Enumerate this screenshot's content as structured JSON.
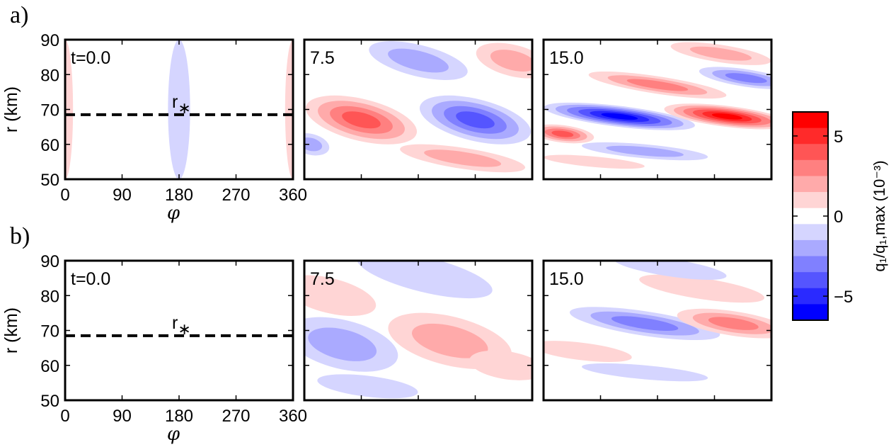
{
  "chart_data": {
    "type": "heatmap",
    "rows": [
      {
        "label": "a)",
        "panels": [
          {
            "time_label": "t=0.0",
            "t": 0.0,
            "rstar_label": "r*",
            "cells": [
              {
                "phi": 0,
                "r": 70,
                "value": 1,
                "phi_width": 25,
                "r_height": 40,
                "tilt": 0
              },
              {
                "phi": 360,
                "r": 70,
                "value": 1,
                "phi_width": 25,
                "r_height": 40,
                "tilt": 0
              },
              {
                "phi": 180,
                "r": 70,
                "value": -1,
                "phi_width": 35,
                "r_height": 40,
                "tilt": 0
              }
            ]
          },
          {
            "time_label": "7.5",
            "t": 7.5,
            "cells": [
              {
                "phi": 90,
                "r": 67,
                "value": 4,
                "phi_width": 180,
                "r_height": 12,
                "tilt": -0.08
              },
              {
                "phi": 270,
                "r": 67,
                "value": -4,
                "phi_width": 180,
                "r_height": 12,
                "tilt": -0.08
              },
              {
                "phi": 180,
                "r": 84,
                "value": -2,
                "phi_width": 160,
                "r_height": 9,
                "tilt": -0.08
              },
              {
                "phi": 330,
                "r": 84,
                "value": 2,
                "phi_width": 120,
                "r_height": 9,
                "tilt": -0.08
              },
              {
                "phi": 10,
                "r": 60,
                "value": -2,
                "phi_width": 60,
                "r_height": 6,
                "tilt": -0.08
              },
              {
                "phi": 250,
                "r": 56,
                "value": 2,
                "phi_width": 200,
                "r_height": 6,
                "tilt": -0.05
              }
            ]
          },
          {
            "time_label": "15.0",
            "t": 15.0,
            "cells": [
              {
                "phi": 120,
                "r": 68,
                "value": -6,
                "phi_width": 240,
                "r_height": 6,
                "tilt": -0.04
              },
              {
                "phi": 290,
                "r": 68,
                "value": 6,
                "phi_width": 200,
                "r_height": 6,
                "tilt": -0.04
              },
              {
                "phi": 180,
                "r": 77,
                "value": 3,
                "phi_width": 220,
                "r_height": 5,
                "tilt": -0.05
              },
              {
                "phi": 320,
                "r": 79,
                "value": -3,
                "phi_width": 150,
                "r_height": 5,
                "tilt": -0.05
              },
              {
                "phi": 280,
                "r": 86,
                "value": 2,
                "phi_width": 160,
                "r_height": 5,
                "tilt": -0.05
              },
              {
                "phi": 30,
                "r": 63,
                "value": 4,
                "phi_width": 100,
                "r_height": 5,
                "tilt": -0.04
              },
              {
                "phi": 160,
                "r": 58,
                "value": -2,
                "phi_width": 200,
                "r_height": 4,
                "tilt": -0.03
              },
              {
                "phi": 80,
                "r": 55,
                "value": 1,
                "phi_width": 160,
                "r_height": 3,
                "tilt": -0.03
              }
            ]
          }
        ]
      },
      {
        "label": "b)",
        "panels": [
          {
            "time_label": "t=0.0",
            "t": 0.0,
            "rstar_label": "r*",
            "cells": []
          },
          {
            "time_label": "7.5",
            "t": 7.5,
            "cells": [
              {
                "phi": 60,
                "r": 66,
                "value": -2,
                "phi_width": 180,
                "r_height": 14,
                "tilt": -0.08
              },
              {
                "phi": 230,
                "r": 67,
                "value": 2,
                "phi_width": 200,
                "r_height": 14,
                "tilt": -0.08
              },
              {
                "phi": 190,
                "r": 86,
                "value": -1,
                "phi_width": 220,
                "r_height": 10,
                "tilt": -0.08
              },
              {
                "phi": 40,
                "r": 80,
                "value": 1,
                "phi_width": 150,
                "r_height": 10,
                "tilt": -0.08
              },
              {
                "phi": 320,
                "r": 60,
                "value": 1,
                "phi_width": 120,
                "r_height": 8,
                "tilt": -0.05
              },
              {
                "phi": 100,
                "r": 54,
                "value": -1,
                "phi_width": 160,
                "r_height": 6,
                "tilt": -0.04
              }
            ]
          },
          {
            "time_label": "15.0",
            "t": 15.0,
            "cells": [
              {
                "phi": 160,
                "r": 72,
                "value": -3,
                "phi_width": 240,
                "r_height": 7,
                "tilt": -0.05
              },
              {
                "phi": 300,
                "r": 72,
                "value": 3,
                "phi_width": 180,
                "r_height": 7,
                "tilt": -0.05
              },
              {
                "phi": 250,
                "r": 82,
                "value": 1,
                "phi_width": 200,
                "r_height": 6,
                "tilt": -0.05
              },
              {
                "phi": 200,
                "r": 88,
                "value": -1,
                "phi_width": 180,
                "r_height": 5,
                "tilt": -0.05
              },
              {
                "phi": 60,
                "r": 64,
                "value": 1,
                "phi_width": 160,
                "r_height": 5,
                "tilt": -0.04
              },
              {
                "phi": 160,
                "r": 58,
                "value": -1,
                "phi_width": 200,
                "r_height": 4,
                "tilt": -0.03
              }
            ]
          }
        ]
      }
    ],
    "rstar_r": 68.5,
    "xlim": [
      0,
      360
    ],
    "ylim": [
      50,
      90
    ],
    "x_ticks": [
      0,
      90,
      180,
      270,
      360
    ],
    "y_ticks": [
      50,
      60,
      70,
      80,
      90
    ],
    "xlabel": "φ",
    "ylabel": "r (km)",
    "colorbar": {
      "range": [
        -6.5,
        6.5
      ],
      "levels": 13,
      "ticks": [
        -5,
        0,
        5
      ],
      "tick_labels": [
        "−5",
        "0",
        "5"
      ],
      "label": "q₁/q₁,max (10⁻³)",
      "colors": {
        "neg_max": "#0000ff",
        "pos_max": "#ff0000",
        "zero": "#ffffff"
      }
    },
    "grid": false
  }
}
